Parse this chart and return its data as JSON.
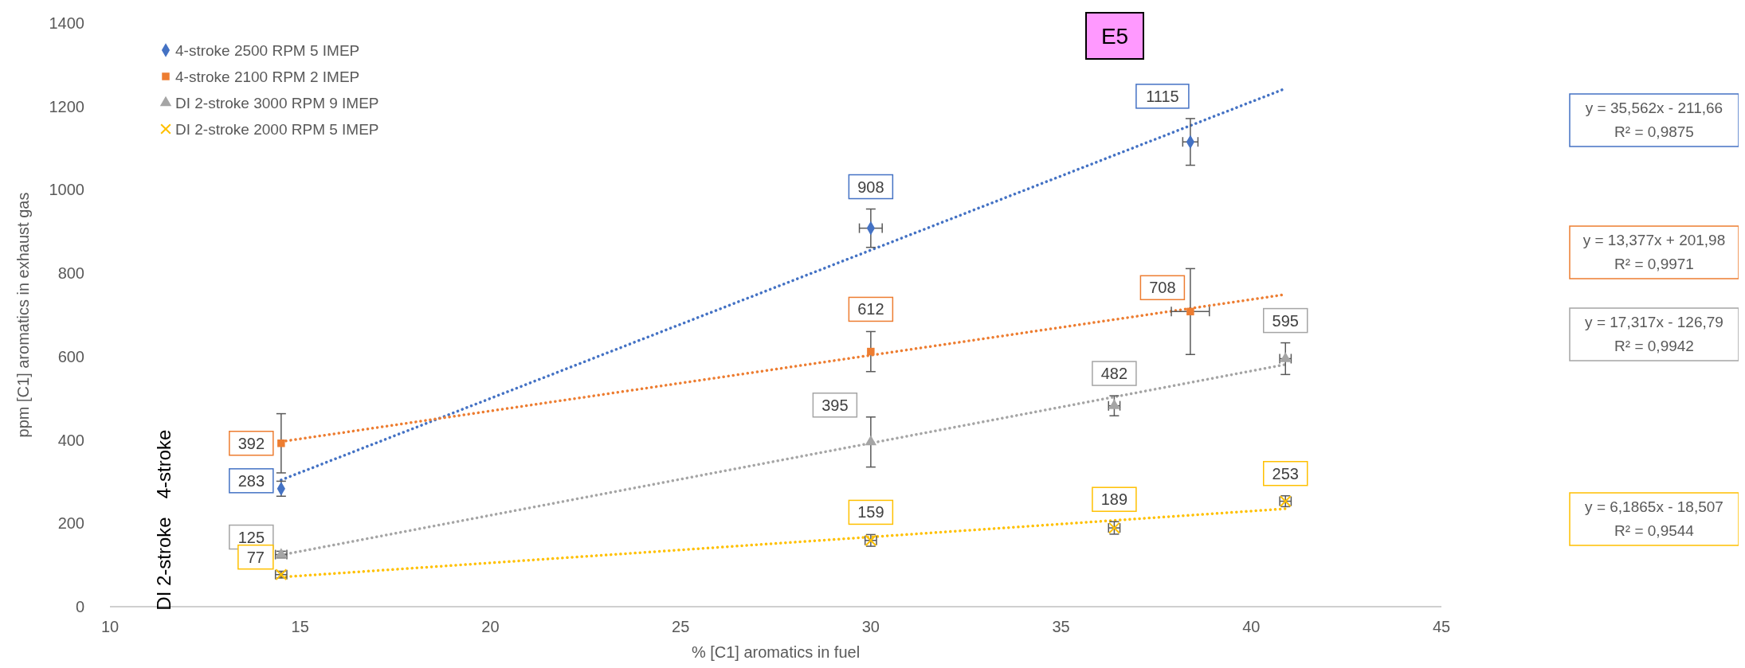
{
  "chart_data": {
    "type": "scatter",
    "title": "E5",
    "xlabel": "% [C1] aromatics in fuel",
    "ylabel": "ppm [C1] aromatics in exhaust gas",
    "xlim": [
      10,
      45
    ],
    "xticks": [
      10,
      15,
      20,
      25,
      30,
      35,
      40,
      45
    ],
    "ylim": [
      0,
      1400
    ],
    "yticks": [
      0,
      200,
      400,
      600,
      800,
      1000,
      1200,
      1400
    ],
    "grid": false,
    "legend": "top left",
    "annotations": [
      "y = 35,562x - 211,66",
      "R² = 0,9875",
      "y = 13,377x + 201,98",
      "R² = 0,9971",
      "y = 17,317x - 126,79",
      "R² = 0,9942",
      "y = 6,1865x - 18,507",
      "R² = 0,9544",
      "4-stroke",
      "DI 2-stroke"
    ],
    "series": [
      {
        "name": "4-stroke 2500 RPM 5 IMEP",
        "color": "#4472c4",
        "marker": "diamond",
        "x": [
          14.5,
          30,
          38.4
        ],
        "values": [
          283,
          908,
          1115
        ],
        "value_labels": [
          "283",
          "908",
          "1115"
        ],
        "errors": [
          18,
          46,
          56
        ],
        "xerrors": [
          null,
          0.3,
          0.2
        ]
      },
      {
        "name": "4-stroke 2100 RPM 2 IMEP",
        "color": "#ed7d31",
        "marker": "square",
        "x": [
          14.5,
          30,
          38.4
        ],
        "values": [
          392,
          612,
          708
        ],
        "value_labels": [
          "392",
          "612",
          "708"
        ],
        "errors": [
          71,
          48,
          103
        ],
        "xerrors": [
          null,
          null,
          0.5
        ]
      },
      {
        "name": "DI 2-stroke 3000 RPM 9 IMEP",
        "color": "#a5a5a5",
        "marker": "triangle",
        "x": [
          14.5,
          30,
          36.4,
          40.9
        ],
        "values": [
          125,
          395,
          482,
          595
        ],
        "value_labels": [
          "125",
          "395",
          "482",
          "595"
        ],
        "errors": [
          8,
          60,
          24,
          38
        ],
        "xerrors": [
          0.15,
          null,
          0.15,
          0.15
        ]
      },
      {
        "name": "DI 2-stroke 2000 RPM 5 IMEP",
        "color": "#ffc000",
        "marker": "cross",
        "x": [
          14.5,
          30,
          36.4,
          40.9
        ],
        "values": [
          77,
          159,
          189,
          253
        ],
        "value_labels": [
          "77",
          "159",
          "189",
          "253"
        ],
        "errors": [
          8,
          14,
          15,
          13
        ],
        "xerrors": [
          0.15,
          0.15,
          0.15,
          0.15
        ]
      },
      {
        "type": "line",
        "color": "#4472c4",
        "line_style": "dotted",
        "x": [
          14.5,
          40.9
        ],
        "values": [
          304,
          1243
        ]
      },
      {
        "type": "line",
        "color": "#ed7d31",
        "line_style": "dotted",
        "x": [
          14.5,
          40.9
        ],
        "values": [
          396,
          749
        ]
      },
      {
        "type": "line",
        "color": "#a5a5a5",
        "line_style": "dotted",
        "x": [
          14.5,
          40.9
        ],
        "values": [
          124,
          581
        ]
      },
      {
        "type": "line",
        "color": "#ffc000",
        "line_style": "dotted",
        "x": [
          14.5,
          40.9
        ],
        "values": [
          71,
          235
        ]
      }
    ]
  }
}
